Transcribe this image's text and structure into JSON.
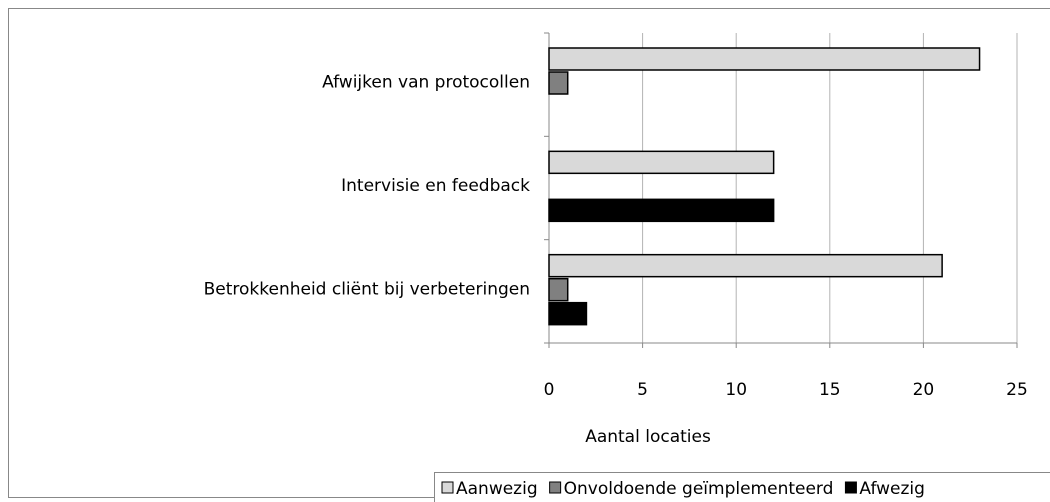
{
  "chart_data": {
    "type": "barh",
    "categories": [
      "Afwijken van protocollen",
      "Intervisie en feedback",
      "Betrokkenheid cliënt bij verbeteringen"
    ],
    "series": [
      {
        "name": "Aanwezig",
        "color": "#d9d9d9",
        "values": [
          23,
          12,
          21
        ]
      },
      {
        "name": "Onvoldoende geïmplementeerd",
        "color": "#808080",
        "values": [
          1,
          0,
          1
        ]
      },
      {
        "name": "Afwezig",
        "color": "#000000",
        "values": [
          0,
          12,
          2
        ]
      }
    ],
    "xlabel": "Aantal locaties",
    "xlim": [
      0,
      25
    ],
    "xticks": [
      0,
      5,
      10,
      15,
      20,
      25
    ],
    "grid": true,
    "legend": "bottom"
  }
}
